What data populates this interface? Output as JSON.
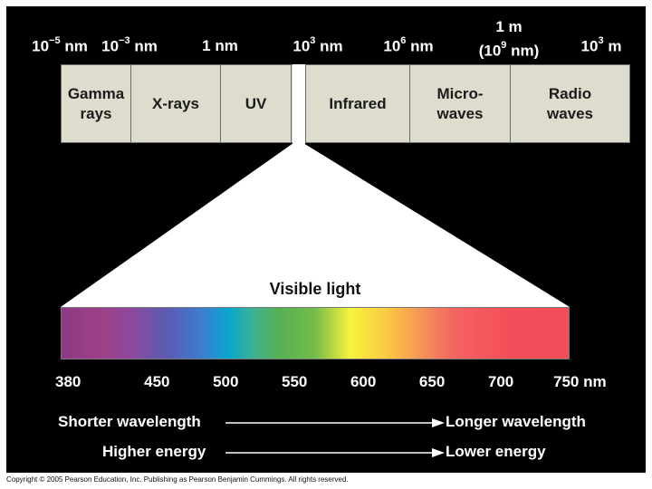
{
  "wavelength_scale": [
    {
      "base": "10",
      "exp": "−5",
      "unit": " nm"
    },
    {
      "base": "10",
      "exp": "−3",
      "unit": " nm"
    },
    {
      "base": "",
      "exp": "",
      "unit": "1 nm"
    },
    {
      "base": "10",
      "exp": "3",
      "unit": " nm"
    },
    {
      "base": "10",
      "exp": "6",
      "unit": " nm"
    },
    {
      "line1": "1 m",
      "base": "(10",
      "exp": "9",
      "unit": " nm)"
    },
    {
      "base": "10",
      "exp": "3",
      "unit": " m"
    }
  ],
  "bands": [
    {
      "line1": "Gamma",
      "line2": "rays"
    },
    {
      "line1": "X-rays",
      "line2": ""
    },
    {
      "line1": "UV",
      "line2": ""
    },
    {
      "line1": "Infrared",
      "line2": ""
    },
    {
      "line1": "Micro-",
      "line2": "waves"
    },
    {
      "line1": "Radio",
      "line2": "waves"
    }
  ],
  "visible_title": "Visible light",
  "visible_ticks": [
    "380",
    "450",
    "500",
    "550",
    "600",
    "650",
    "700",
    "750 nm"
  ],
  "visible_tick_values": [
    380,
    450,
    500,
    550,
    600,
    650,
    700,
    750
  ],
  "direction_rows": [
    {
      "left": "Shorter wavelength",
      "right": "Longer wavelength"
    },
    {
      "left": "Higher energy",
      "right": "Lower energy"
    }
  ],
  "copyright": "Copyright © 2005 Pearson Education, Inc. Publishing as Pearson Benjamin Cummings. All rights reserved.",
  "colors": {
    "background": "#000000",
    "bar": "#dedccd",
    "text": "#ffffff"
  }
}
